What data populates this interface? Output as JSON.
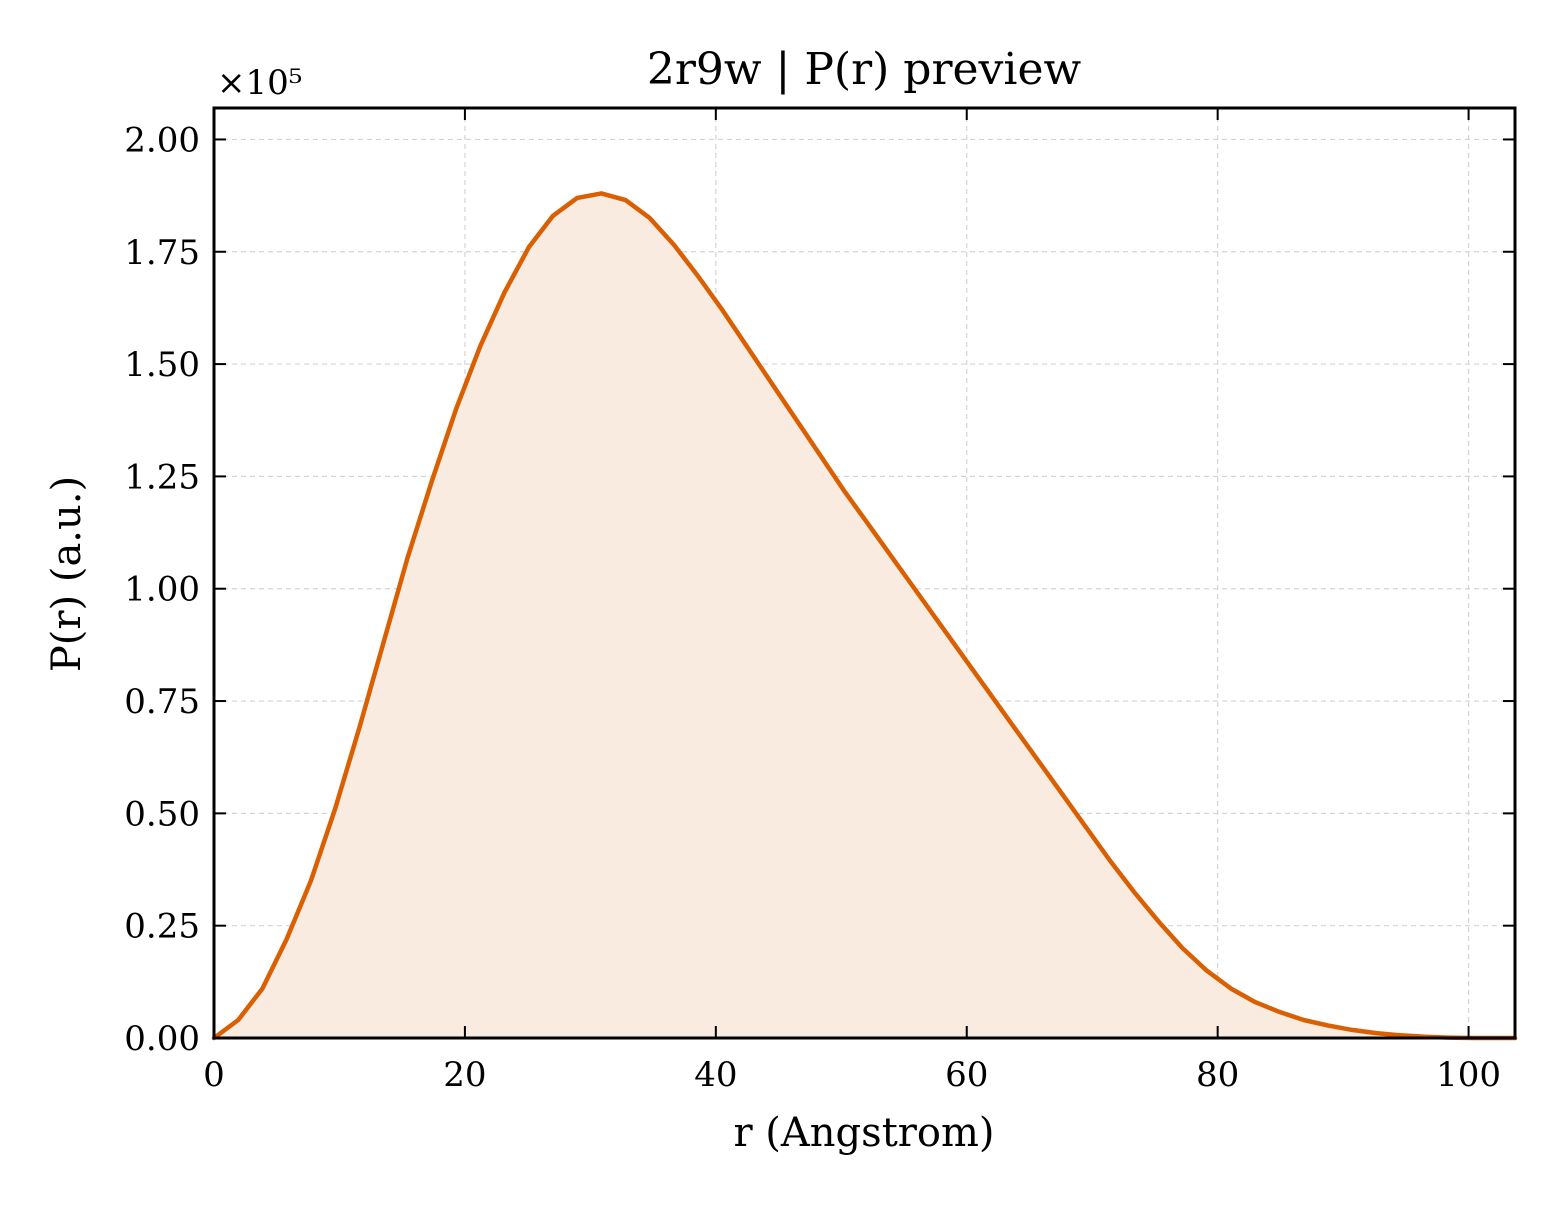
{
  "chart_data": {
    "type": "area",
    "title": "2r9w | P(r) preview",
    "xlabel": "r (Angstrom)",
    "ylabel": "P(r) (a.u.)",
    "y_offset_text": "×10⁵",
    "xlim": [
      0,
      103.7
    ],
    "ylim": [
      0,
      2.07
    ],
    "y_scale_multiplier": 100000,
    "x_ticks": [
      0,
      20,
      40,
      60,
      80,
      100
    ],
    "x_tick_labels": [
      "0",
      "20",
      "40",
      "60",
      "80",
      "100"
    ],
    "y_ticks": [
      0,
      0.25,
      0.5,
      0.75,
      1.0,
      1.25,
      1.5,
      1.75,
      2.0
    ],
    "y_tick_labels": [
      "0.00",
      "0.25",
      "0.50",
      "0.75",
      "1.00",
      "1.25",
      "1.50",
      "1.75",
      "2.00"
    ],
    "grid": true,
    "legend": "none",
    "line_color": "#d95f02",
    "fill_color": "#f9ebe0",
    "series": [
      {
        "x": [
          0,
          1.93,
          3.86,
          5.79,
          7.72,
          9.65,
          11.58,
          13.51,
          15.44,
          17.37,
          19.3,
          21.23,
          23.16,
          25.09,
          27.02,
          28.95,
          30.88,
          32.81,
          34.74,
          36.67,
          38.6,
          40.53,
          42.46,
          44.39,
          46.32,
          48.25,
          50.18,
          52.11,
          54.04,
          55.97,
          57.9,
          59.83,
          61.76,
          63.69,
          65.62,
          67.55,
          69.48,
          71.41,
          73.34,
          75.27,
          77.2,
          79.13,
          81.06,
          82.99,
          84.92,
          86.85,
          88.78,
          90.71,
          92.64,
          94.57,
          96.5,
          98.43,
          100.36,
          102.29,
          103.7
        ],
        "y": [
          0.0,
          0.04,
          0.11,
          0.22,
          0.35,
          0.51,
          0.69,
          0.88,
          1.07,
          1.24,
          1.4,
          1.54,
          1.66,
          1.76,
          1.83,
          1.87,
          1.88,
          1.865,
          1.825,
          1.765,
          1.695,
          1.62,
          1.54,
          1.46,
          1.38,
          1.3,
          1.22,
          1.145,
          1.07,
          0.995,
          0.92,
          0.845,
          0.77,
          0.695,
          0.62,
          0.545,
          0.47,
          0.395,
          0.325,
          0.26,
          0.2,
          0.15,
          0.11,
          0.08,
          0.058,
          0.04,
          0.028,
          0.018,
          0.011,
          0.006,
          0.003,
          0.001,
          0.0,
          0.0,
          0.0
        ]
      }
    ]
  }
}
